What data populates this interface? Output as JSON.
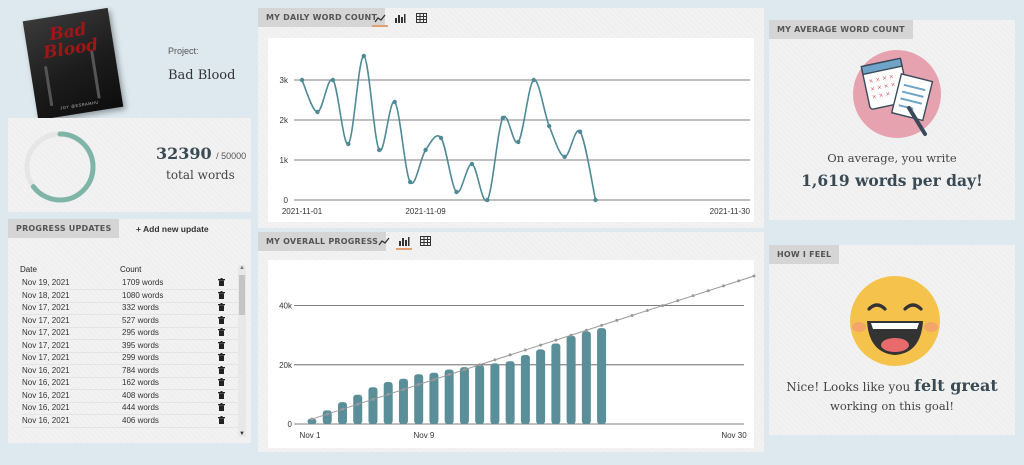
{
  "project": {
    "label": "Project:",
    "name": "Bad Blood",
    "cover_title": "Bad\nBlood",
    "cover_author": "JOY @ESRAMHU"
  },
  "total": {
    "count": "32390",
    "goal": "/ 50000",
    "label": "total words",
    "progress_fraction": 0.6478
  },
  "updates": {
    "tag": "PROGRESS UPDATES",
    "add_label": "+ Add new update",
    "col_date": "Date",
    "col_count": "Count",
    "rows": [
      {
        "date": "Nov 19, 2021",
        "count": "1709 words"
      },
      {
        "date": "Nov 18, 2021",
        "count": "1080 words"
      },
      {
        "date": "Nov 17, 2021",
        "count": "332 words"
      },
      {
        "date": "Nov 17, 2021",
        "count": "527 words"
      },
      {
        "date": "Nov 17, 2021",
        "count": "295 words"
      },
      {
        "date": "Nov 17, 2021",
        "count": "395 words"
      },
      {
        "date": "Nov 17, 2021",
        "count": "299 words"
      },
      {
        "date": "Nov 16, 2021",
        "count": "784 words"
      },
      {
        "date": "Nov 16, 2021",
        "count": "162 words"
      },
      {
        "date": "Nov 16, 2021",
        "count": "408 words"
      },
      {
        "date": "Nov 16, 2021",
        "count": "444 words"
      },
      {
        "date": "Nov 16, 2021",
        "count": "406 words"
      }
    ]
  },
  "daily": {
    "tag": "MY DAILY WORD COUNT"
  },
  "overall": {
    "tag": "MY OVERALL PROGRESS"
  },
  "average": {
    "tag": "MY AVERAGE WORD COUNT",
    "line1": "On average, you write",
    "line2": "1,619 words per day!"
  },
  "feel": {
    "tag": "HOW I FEEL",
    "line1a": "Nice! Looks like you",
    "line1b": "felt great",
    "line2": "working on this goal!"
  },
  "colors": {
    "teal": "#4f8a96",
    "ring": "#7fb5a8",
    "bar": "#5a8e99",
    "pink": "#e7a2b0"
  },
  "chart_data": [
    {
      "type": "line",
      "title": "MY DAILY WORD COUNT",
      "x_ticks": [
        "2021-11-01",
        "2021-11-09",
        "2021-11-30"
      ],
      "y_ticks": [
        "0",
        "1k",
        "2k",
        "3k"
      ],
      "ylim": [
        0,
        3500
      ],
      "xlim": [
        1,
        30
      ],
      "x": [
        1,
        2,
        3,
        4,
        5,
        6,
        7,
        8,
        9,
        10,
        11,
        12,
        13,
        14,
        15,
        16,
        17,
        18,
        19,
        20
      ],
      "values": [
        3000,
        2200,
        3000,
        1400,
        3600,
        1250,
        2450,
        450,
        1250,
        1550,
        200,
        900,
        0,
        2050,
        1450,
        3000,
        1850,
        1080,
        1709,
        0
      ],
      "grid": true
    },
    {
      "type": "bar",
      "title": "MY OVERALL PROGRESS",
      "x_ticks": [
        "Nov 1",
        "Nov 9",
        "Nov 30"
      ],
      "y_ticks": [
        "0",
        "20k",
        "40k"
      ],
      "ylim": [
        0,
        50000
      ],
      "xlim": [
        1,
        30
      ],
      "x": [
        1,
        2,
        3,
        4,
        5,
        6,
        7,
        8,
        9,
        10,
        11,
        12,
        13,
        14,
        15,
        16,
        17,
        18,
        19,
        20
      ],
      "values": [
        1800,
        4600,
        7400,
        9900,
        12400,
        14200,
        15300,
        16800,
        17300,
        18400,
        19200,
        19900,
        20500,
        21200,
        23300,
        25200,
        27200,
        29800,
        31300,
        32390
      ],
      "target_line": {
        "from": [
          1,
          1667
        ],
        "to": [
          30,
          50000
        ]
      },
      "grid": true
    }
  ]
}
